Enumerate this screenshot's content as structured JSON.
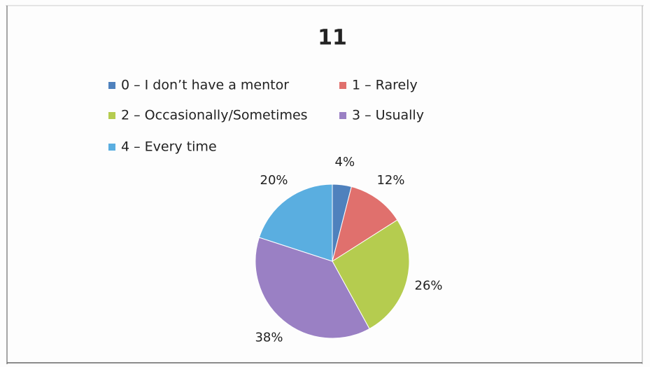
{
  "chart_data": {
    "type": "pie",
    "title": "11",
    "categories": [
      "0 – I don’t have a mentor",
      "1 – Rarely",
      "2 – Occasionally/Sometimes",
      "3 – Usually",
      "4 – Every time"
    ],
    "values": [
      4,
      12,
      26,
      38,
      20
    ],
    "value_labels": [
      "4%",
      "12%",
      "26%",
      "38%",
      "20%"
    ],
    "colors": [
      "#4f81bd",
      "#e0706d",
      "#b5cc4f",
      "#9a80c4",
      "#5aaee0"
    ],
    "legend": "top"
  }
}
